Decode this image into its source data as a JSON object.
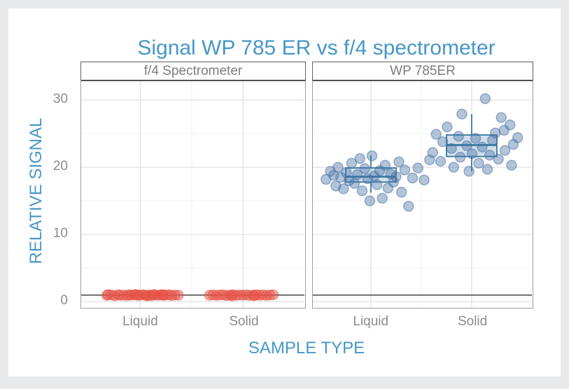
{
  "title": "Signal WP 785 ER vs f/4 spectrometer",
  "x_axis": {
    "label": "SAMPLE TYPE",
    "categories": [
      "Liquid",
      "Solid"
    ]
  },
  "y_axis": {
    "label": "RELATIVE SIGNAL",
    "ticks": [
      "0",
      "10",
      "20",
      "30"
    ]
  },
  "colors": {
    "title": "#4697c6",
    "axis_label": "#4697c6",
    "tick_label": "#8c8c8c",
    "strip_text": "#7d7d7d",
    "page_bg": "#e8e9eb",
    "panel_bg": "#ffffff",
    "grid_major": "#e4e4e4",
    "grid_minor": "#f3f3f3",
    "reference_line": "#5a5a5a",
    "red_point_fill": "rgba(232,85,73,0.5)",
    "red_point_stroke": "rgba(226,70,58,0.5)",
    "blue_point_fill": "rgba(73,115,165,0.42)",
    "blue_point_stroke": "rgba(73,115,165,0.55)",
    "box_stroke": "#35799f",
    "box_fill": "rgba(125,165,200,0.35)"
  },
  "chart_data": {
    "type": "scatter",
    "subtype": "faceted jittered points with boxplots",
    "title": "Signal WP 785 ER vs f/4 spectrometer",
    "xlabel": "SAMPLE TYPE",
    "ylabel": "RELATIVE SIGNAL",
    "categories": [
      "Liquid",
      "Solid"
    ],
    "ylim": [
      -0.9,
      32.8
    ],
    "y_major_gridlines": [
      0,
      10,
      20,
      30
    ],
    "y_minor_gridlines": [
      5,
      15,
      25
    ],
    "grid": true,
    "legend": false,
    "reference_line_y": 1,
    "facets": [
      {
        "label": "f/4 Spectrometer",
        "point_color_key": "red",
        "boxes": [
          null,
          null
        ],
        "series": [
          {
            "category": "Liquid",
            "points": [
              [
                -0.15,
                0.95
              ],
              [
                -0.145,
                1.08
              ],
              [
                -0.13,
                1.02
              ],
              [
                -0.115,
                0.9
              ],
              [
                -0.1,
                1.05
              ],
              [
                -0.09,
                0.97
              ],
              [
                -0.075,
                1.0
              ],
              [
                -0.06,
                0.92
              ],
              [
                -0.05,
                1.06
              ],
              [
                -0.04,
                0.98
              ],
              [
                -0.025,
                1.03
              ],
              [
                -0.02,
                1.1
              ],
              [
                -0.01,
                0.94
              ],
              [
                0.0,
                1.0
              ],
              [
                0.012,
                1.05
              ],
              [
                0.025,
                0.96
              ],
              [
                0.03,
                0.88
              ],
              [
                0.04,
                1.01
              ],
              [
                0.05,
                0.9
              ],
              [
                0.06,
                1.08
              ],
              [
                0.065,
                1.04
              ],
              [
                0.08,
                0.97
              ],
              [
                0.09,
                1.02
              ],
              [
                0.1,
                1.08
              ],
              [
                0.105,
                0.95
              ],
              [
                0.115,
                1.0
              ],
              [
                0.13,
                1.06
              ],
              [
                0.14,
                0.93
              ],
              [
                0.155,
                1.0
              ],
              [
                0.17,
                0.98
              ]
            ]
          },
          {
            "category": "Solid",
            "points": [
              [
                -0.15,
                0.97
              ],
              [
                -0.135,
                1.03
              ],
              [
                -0.12,
                0.95
              ],
              [
                -0.105,
                1.0
              ],
              [
                -0.09,
                1.05
              ],
              [
                -0.075,
                0.92
              ],
              [
                -0.06,
                1.0
              ],
              [
                -0.05,
                0.88
              ],
              [
                -0.045,
                1.06
              ],
              [
                -0.03,
                0.96
              ],
              [
                -0.015,
                1.02
              ],
              [
                0.0,
                0.98
              ],
              [
                0.015,
                1.04
              ],
              [
                0.03,
                0.94
              ],
              [
                0.045,
                1.0
              ],
              [
                0.05,
                0.9
              ],
              [
                0.06,
                1.05
              ],
              [
                0.075,
                0.97
              ],
              [
                0.09,
                1.02
              ],
              [
                0.105,
                0.95
              ],
              [
                0.12,
                1.0
              ],
              [
                0.135,
                1.04
              ]
            ]
          }
        ]
      },
      {
        "label": "WP 785ER",
        "point_color_key": "blue",
        "boxes": [
          {
            "q1": 17.8,
            "median": 18.6,
            "q3": 19.9,
            "whisker_low": 16.2,
            "whisker_high": 21.8
          },
          {
            "q1": 21.6,
            "median": 23.3,
            "q3": 24.8,
            "whisker_low": 19.4,
            "whisker_high": 27.9
          }
        ],
        "series": [
          {
            "category": "Liquid",
            "points": [
              [
                -0.205,
                18.2
              ],
              [
                -0.185,
                19.4
              ],
              [
                -0.17,
                18.8
              ],
              [
                -0.16,
                17.2
              ],
              [
                -0.15,
                20.0
              ],
              [
                -0.138,
                18.5
              ],
              [
                -0.125,
                16.8
              ],
              [
                -0.112,
                19.2
              ],
              [
                -0.1,
                18.0
              ],
              [
                -0.088,
                20.6
              ],
              [
                -0.075,
                17.6
              ],
              [
                -0.062,
                18.9
              ],
              [
                -0.05,
                21.3
              ],
              [
                -0.04,
                16.5
              ],
              [
                -0.028,
                19.8
              ],
              [
                -0.015,
                18.3
              ],
              [
                -0.005,
                15.0
              ],
              [
                0.005,
                21.7
              ],
              [
                0.015,
                18.7
              ],
              [
                0.028,
                17.4
              ],
              [
                0.04,
                19.5
              ],
              [
                0.052,
                15.4
              ],
              [
                0.065,
                20.3
              ],
              [
                0.078,
                16.9
              ],
              [
                0.09,
                19.0
              ],
              [
                0.103,
                17.8
              ],
              [
                0.115,
                18.6
              ],
              [
                0.128,
                20.8
              ],
              [
                0.14,
                16.3
              ],
              [
                0.155,
                19.6
              ],
              [
                0.172,
                14.2
              ],
              [
                0.19,
                18.4
              ],
              [
                0.215,
                19.9
              ],
              [
                0.243,
                18.1
              ]
            ]
          },
          {
            "category": "Solid",
            "points": [
              [
                0.062,
                30.2
              ],
              [
                -0.045,
                27.9
              ],
              [
                0.135,
                27.4
              ],
              [
                -0.112,
                26.0
              ],
              [
                0.175,
                26.3
              ],
              [
                0.148,
                25.5
              ],
              [
                -0.162,
                24.9
              ],
              [
                -0.06,
                24.6
              ],
              [
                0.018,
                24.3
              ],
              [
                0.095,
                24.0
              ],
              [
                -0.132,
                23.8
              ],
              [
                0.19,
                23.4
              ],
              [
                -0.022,
                23.2
              ],
              [
                0.048,
                23.0
              ],
              [
                -0.092,
                22.8
              ],
              [
                0.152,
                22.5
              ],
              [
                -0.178,
                22.2
              ],
              [
                0.002,
                22.0
              ],
              [
                0.082,
                21.8
              ],
              [
                -0.052,
                21.5
              ],
              [
                0.122,
                21.2
              ],
              [
                -0.142,
                20.9
              ],
              [
                0.032,
                20.6
              ],
              [
                0.182,
                20.3
              ],
              [
                -0.082,
                20.0
              ],
              [
                0.072,
                19.7
              ],
              [
                -0.012,
                19.4
              ],
              [
                0.108,
                25.1
              ],
              [
                -0.192,
                21.1
              ],
              [
                0.21,
                24.4
              ]
            ]
          }
        ]
      }
    ]
  }
}
